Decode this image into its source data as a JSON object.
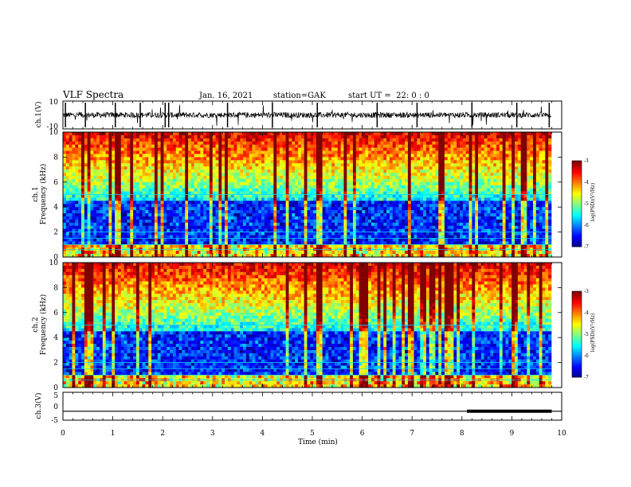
{
  "header": {
    "title": "VLF Spectra",
    "date": "Jan. 16, 2021",
    "station": "station=GAK",
    "start": "start UT =  22: 0 : 0"
  },
  "chart_data": [
    {
      "type": "line",
      "name": "ch1-waveform",
      "ylabel": "ch.1(V)",
      "ylim": [
        -10,
        10
      ],
      "yticks": [
        "10",
        "-10"
      ],
      "xlim": [
        0,
        10
      ]
    },
    {
      "type": "heatmap",
      "name": "ch1-spectrogram",
      "ylabel": "Frequency (kHz)",
      "channel_label": "ch.1",
      "ylim": [
        0,
        10
      ],
      "yticks": [
        "0",
        "2",
        "4",
        "6",
        "8",
        "10"
      ],
      "colorbar": {
        "label": "log(PSD)(V²/Hz)",
        "ticks": [
          "-3",
          "-4",
          "-5",
          "-6",
          "-7"
        ],
        "range": [
          -7,
          -3
        ]
      }
    },
    {
      "type": "heatmap",
      "name": "ch2-spectrogram",
      "ylabel": "Frequency (kHz)",
      "channel_label": "ch.2",
      "ylim": [
        0,
        10
      ],
      "yticks": [
        "0",
        "2",
        "4",
        "6",
        "8",
        "10"
      ],
      "colorbar": {
        "label": "log(PSD)(V²/Hz)",
        "ticks": [
          "-3",
          "-4",
          "-5",
          "-6",
          "-7"
        ],
        "range": [
          -7,
          -3
        ]
      }
    },
    {
      "type": "line",
      "name": "ch3-waveform",
      "ylabel": "ch.3(V)",
      "ylim": [
        -5,
        5
      ],
      "yticks": [
        "5",
        "0",
        "-5"
      ],
      "value": -1.8,
      "bold_segment": [
        8.1,
        9.8
      ],
      "xlim": [
        0,
        10
      ]
    }
  ],
  "xaxis": {
    "label": "Time (min)",
    "ticks": [
      "0",
      "1",
      "2",
      "3",
      "4",
      "5",
      "6",
      "7",
      "8",
      "9",
      "10"
    ],
    "range": [
      0,
      10
    ]
  },
  "colors": {
    "low": "#000080",
    "mid": "#00ff00",
    "high": "#ff0000"
  }
}
